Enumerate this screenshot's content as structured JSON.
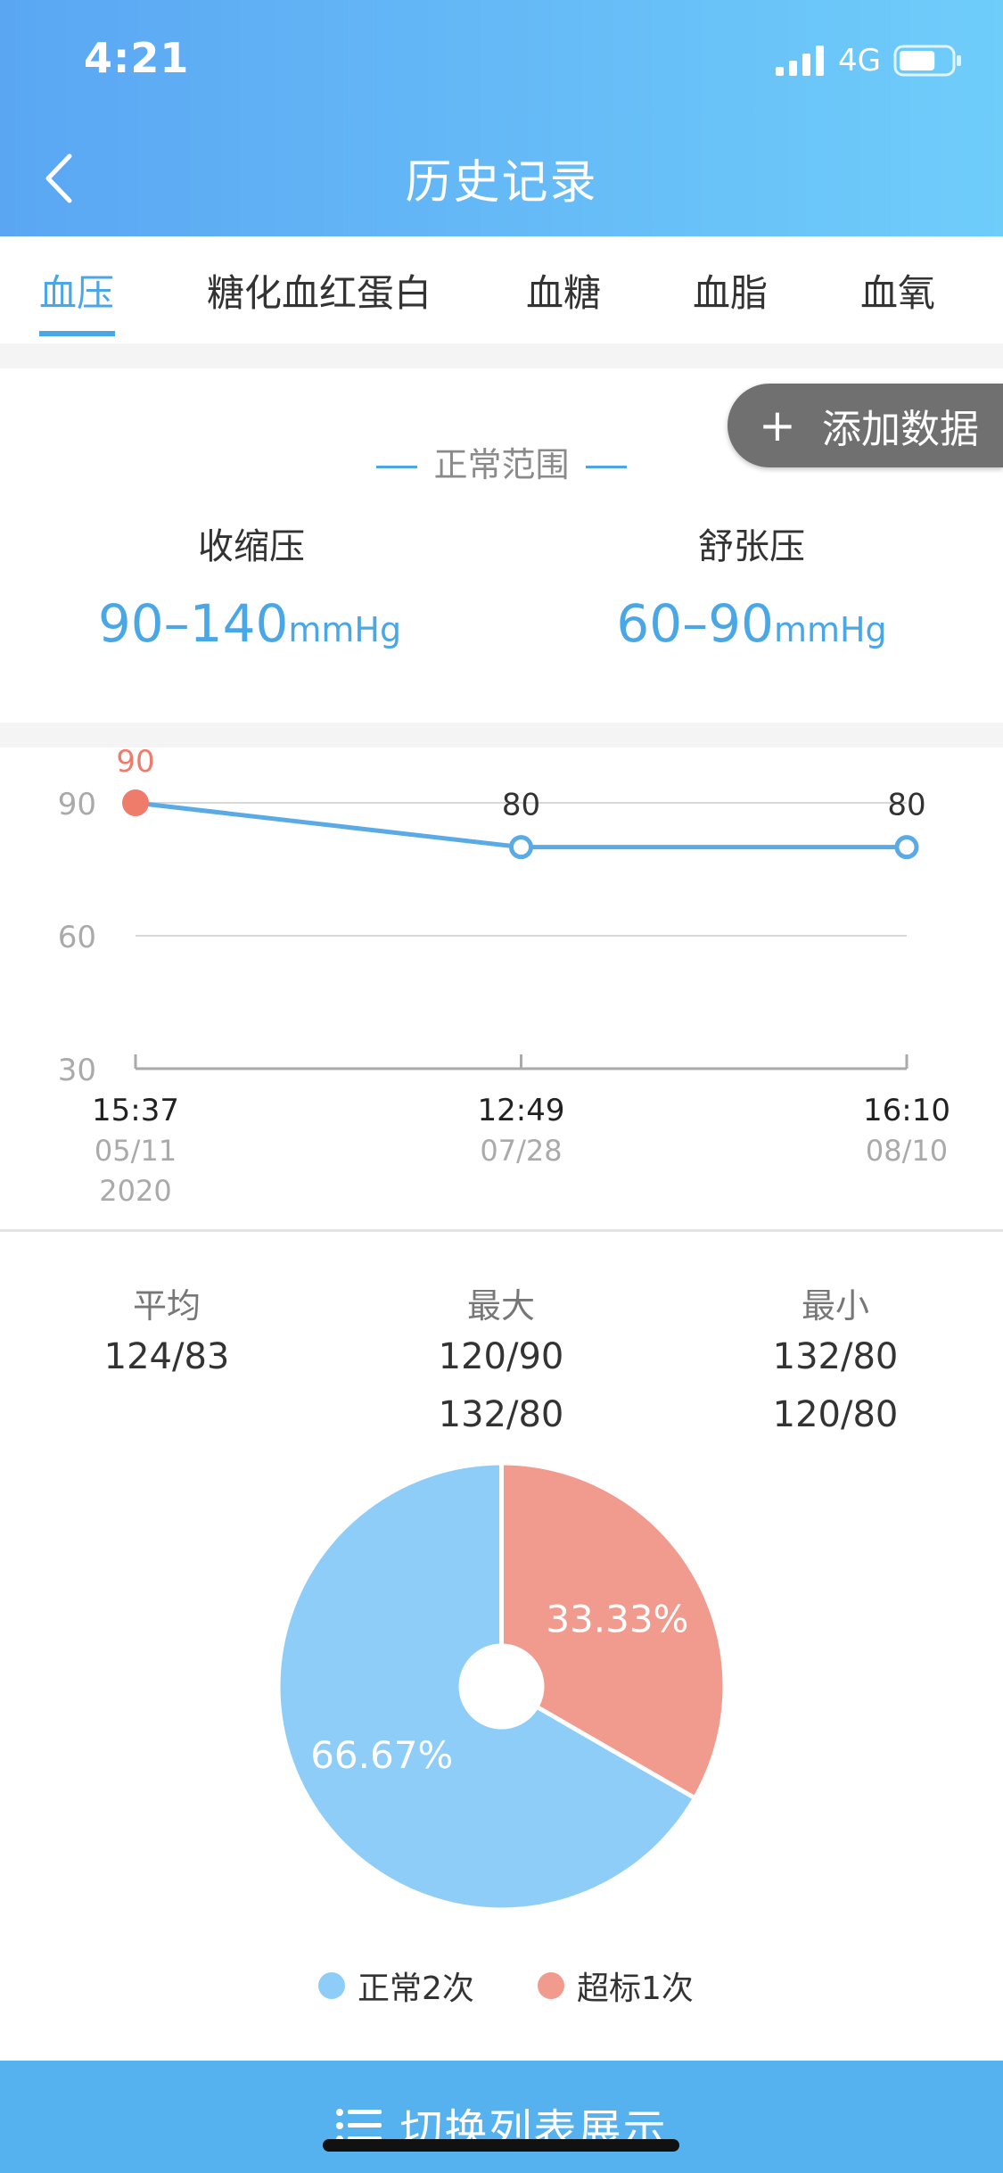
{
  "status_bar": {
    "time": "4:21",
    "network": "4G",
    "battery_percent": 70
  },
  "header": {
    "title": "历史记录"
  },
  "tabs": [
    {
      "label": "血压",
      "active": true
    },
    {
      "label": "糖化血红蛋白",
      "active": false
    },
    {
      "label": "血糖",
      "active": false
    },
    {
      "label": "血脂",
      "active": false
    },
    {
      "label": "血氧",
      "active": false
    }
  ],
  "add_button": {
    "label": "添加数据"
  },
  "normal_range": {
    "title": "正常范围",
    "systolic": {
      "label": "收缩压",
      "value": "90–140",
      "unit": "mmHg"
    },
    "diastolic": {
      "label": "舒张压",
      "value": "60–90",
      "unit": "mmHg"
    }
  },
  "chart_data": {
    "type": "line",
    "x": [
      "15:37",
      "12:49",
      "16:10"
    ],
    "x_dates": [
      "05/11",
      "07/28",
      "08/10"
    ],
    "x_year": "2020",
    "series": [
      {
        "values": [
          90,
          80,
          80
        ],
        "data_labels": [
          "90",
          "80",
          "80"
        ],
        "abnormal": [
          true,
          false,
          false
        ]
      }
    ],
    "yticks": [
      "90",
      "60",
      "30"
    ],
    "ylim": [
      30,
      90
    ],
    "colors": {
      "line": "#5aaae6",
      "abnormal": "#ef7b6a",
      "grid": "#d8d8d8"
    }
  },
  "stats": [
    {
      "label": "平均",
      "values": [
        "124/83"
      ]
    },
    {
      "label": "最大",
      "values": [
        "120/90",
        "132/80"
      ]
    },
    {
      "label": "最小",
      "values": [
        "132/80",
        "120/80"
      ]
    }
  ],
  "pie_chart": {
    "type": "pie",
    "slices": [
      {
        "name": "超标1次",
        "value": 33.33,
        "label": "33.33%",
        "color": "#f09b8e"
      },
      {
        "name": "正常2次",
        "value": 66.67,
        "label": "66.67%",
        "color": "#8ecdf7"
      }
    ]
  },
  "legend": [
    {
      "label": "正常2次",
      "color": "#8ecdf7"
    },
    {
      "label": "超标1次",
      "color": "#f09b8e"
    }
  ],
  "bottom_button": {
    "label": "切换列表展示"
  }
}
